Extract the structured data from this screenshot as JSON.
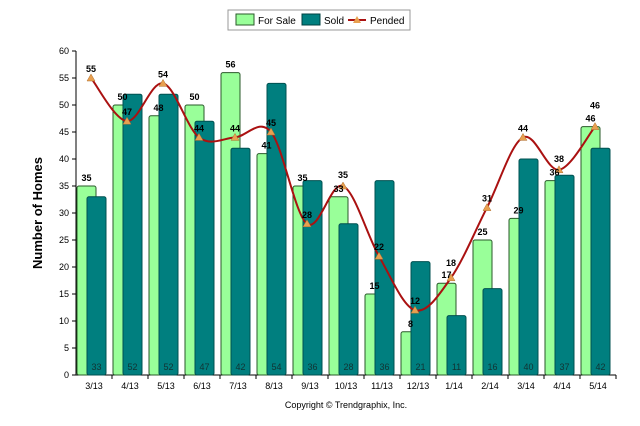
{
  "chart_data": {
    "type": "bar",
    "title": "",
    "xlabel": "",
    "ylabel": "Number of Homes",
    "ylim": [
      0,
      60
    ],
    "yticks": [
      0,
      5,
      10,
      15,
      20,
      25,
      30,
      35,
      40,
      45,
      50,
      55,
      60
    ],
    "grid": false,
    "legend_position": "top",
    "categories": [
      "3/13",
      "4/13",
      "5/13",
      "6/13",
      "7/13",
      "8/13",
      "9/13",
      "10/13",
      "11/13",
      "12/13",
      "1/14",
      "2/14",
      "3/14",
      "4/14",
      "5/14"
    ],
    "series": [
      {
        "name": "For Sale",
        "kind": "bar",
        "color": "#99ff99",
        "values": [
          35,
          50,
          48,
          50,
          56,
          41,
          35,
          33,
          15,
          8,
          17,
          25,
          29,
          36,
          46
        ]
      },
      {
        "name": "Sold",
        "kind": "bar",
        "color": "#007f7f",
        "values": [
          33,
          52,
          52,
          47,
          42,
          54,
          36,
          28,
          36,
          21,
          11,
          16,
          40,
          37,
          42
        ]
      },
      {
        "name": "Pended",
        "kind": "line",
        "color": "#aa1111",
        "marker_color": "#e8a050",
        "values": [
          55,
          47,
          54,
          44,
          44,
          45,
          28,
          35,
          22,
          12,
          18,
          31,
          44,
          38,
          46
        ]
      }
    ]
  },
  "footer": {
    "copyright": "Copyright © Trendgraphix, Inc."
  }
}
